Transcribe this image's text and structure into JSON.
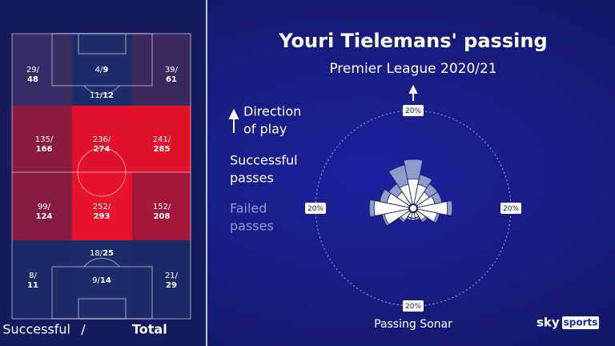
{
  "header": {
    "title": "Youri Tielemans' passing",
    "subtitle": "Premier League 2020/21"
  },
  "pitch": {
    "separator": "/",
    "zones": [
      {
        "successful": 29,
        "total": 48,
        "color": "#3a2b63"
      },
      {
        "successful": 4,
        "total": 9,
        "color": "#1e2c6b"
      },
      {
        "successful": 11,
        "total": 12,
        "color": "#1e2c6b"
      },
      {
        "successful": 39,
        "total": 61,
        "color": "#3b2a60"
      },
      {
        "successful": 135,
        "total": 166,
        "color": "#8c1b42"
      },
      {
        "successful": 236,
        "total": 274,
        "color": "#e1112b"
      },
      {
        "successful": 241,
        "total": 285,
        "color": "#e3122b"
      },
      {
        "successful": 99,
        "total": 124,
        "color": "#861b44"
      },
      {
        "successful": 252,
        "total": 293,
        "color": "#e8132a"
      },
      {
        "successful": 152,
        "total": 208,
        "color": "#a3173b"
      },
      {
        "successful": 8,
        "total": 11,
        "color": "#1c2a67"
      },
      {
        "successful": 18,
        "total": 25,
        "color": "#1e2c6b"
      },
      {
        "successful": 9,
        "total": 14,
        "color": "#1e2c6b"
      },
      {
        "successful": 21,
        "total": 29,
        "color": "#1c2a67"
      }
    ]
  },
  "footer": {
    "successful": "Successful",
    "separator": "/",
    "total": "Total"
  },
  "legend": {
    "direction": [
      "Direction",
      "of play"
    ],
    "successful": [
      "Successful",
      "passes"
    ],
    "failed": [
      "Failed",
      "passes"
    ]
  },
  "sonar": {
    "title": "Passing Sonar",
    "ring": {
      "value": 20,
      "label": "20%"
    },
    "successful_color": "#ffffff",
    "failed_color": "#8d9cc8",
    "successful": [
      6,
      5,
      4,
      4.5,
      7,
      5,
      3,
      2,
      2,
      2,
      3,
      6,
      8,
      5.5,
      4,
      5
    ],
    "total": [
      10,
      7,
      6,
      6,
      8,
      5.5,
      3.5,
      2.5,
      2.5,
      2.5,
      3.5,
      6.5,
      9,
      7,
      6,
      9
    ]
  },
  "logo": {
    "sky": "sky",
    "sports": "sports"
  }
}
